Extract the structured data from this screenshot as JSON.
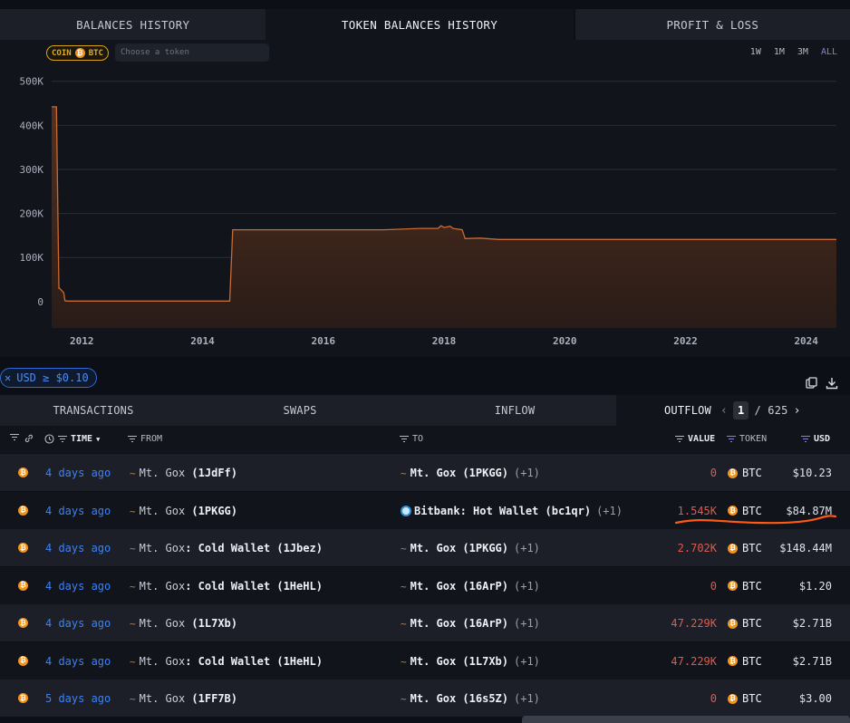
{
  "top_tabs": [
    {
      "label": "BALANCES HISTORY",
      "active": false
    },
    {
      "label": "TOKEN BALANCES HISTORY",
      "active": true
    },
    {
      "label": "PROFIT & LOSS",
      "active": false
    }
  ],
  "coin_filter": {
    "coin_label": "COIN",
    "token": "BTC",
    "token_icon": "bitcoin-icon"
  },
  "token_search": {
    "placeholder": "Choose a token",
    "value": ""
  },
  "ranges": [
    {
      "label": "1W",
      "active": false
    },
    {
      "label": "1M",
      "active": false
    },
    {
      "label": "3M",
      "active": false
    },
    {
      "label": "ALL",
      "active": true
    }
  ],
  "chart_data": {
    "type": "area",
    "title": "",
    "xlabel": "",
    "ylabel": "",
    "ylim": [
      -60000,
      520000
    ],
    "xlim": [
      2011.5,
      2024.5
    ],
    "x_ticks": [
      "2012",
      "2014",
      "2016",
      "2018",
      "2020",
      "2022",
      "2024"
    ],
    "y_ticks": [
      "0",
      "100K",
      "200K",
      "300K",
      "400K",
      "500K"
    ],
    "grid": true,
    "color": "#c96a33",
    "series": [
      {
        "x": [
          2011.5,
          2011.58,
          2011.62,
          2011.63,
          2011.7,
          2011.72,
          2011.75,
          2014.45,
          2014.5,
          2017.0,
          2017.6,
          2017.9,
          2017.95,
          2018.0,
          2018.1,
          2018.15,
          2018.3,
          2018.35,
          2018.6,
          2018.9,
          2020.0,
          2022.0,
          2024.0,
          2024.5
        ],
        "y": [
          442000,
          442000,
          30000,
          30000,
          20000,
          2000,
          1000,
          1000,
          163000,
          163000,
          166000,
          166000,
          172000,
          168000,
          171000,
          166000,
          163000,
          143000,
          144000,
          141000,
          141000,
          141000,
          141000,
          141000
        ]
      }
    ]
  },
  "usd_filter": {
    "label": "USD ≥ $0.10"
  },
  "table_tabs": [
    {
      "label": "TRANSACTIONS",
      "active": false
    },
    {
      "label": "SWAPS",
      "active": false
    },
    {
      "label": "INFLOW",
      "active": false
    },
    {
      "label": "OUTFLOW",
      "active": true
    }
  ],
  "pagination": {
    "current": "1",
    "total": "/ 625"
  },
  "columns": {
    "time": "TIME",
    "from": "FROM",
    "to": "TO",
    "value": "VALUE",
    "token": "TOKEN",
    "usd": "USD"
  },
  "rows": [
    {
      "time": "4 days ago",
      "from_entity": "Mt. Gox",
      "from_label": " (1JdFf)",
      "to_icon": "mtgox-icon",
      "to_entity": "Mt. Gox (1PKGG)",
      "to_extra": "(+1)",
      "value": "0",
      "token": "BTC",
      "usd": "$10.23"
    },
    {
      "time": "4 days ago",
      "from_entity": "Mt. Gox",
      "from_label": " (1PKGG)",
      "to_icon": "bitbank-icon",
      "to_entity": "Bitbank: Hot Wallet (bc1qr)",
      "to_extra": "(+1)",
      "value": "1.545K",
      "token": "BTC",
      "usd": "$84.87M"
    },
    {
      "time": "4 days ago",
      "from_entity": "Mt. Gox",
      "from_label": ": Cold Wallet (1Jbez)",
      "to_icon": "mtgox-icon",
      "to_entity": "Mt. Gox (1PKGG)",
      "to_extra": "(+1)",
      "value": "2.702K",
      "token": "BTC",
      "usd": "$148.44M"
    },
    {
      "time": "4 days ago",
      "from_entity": "Mt. Gox",
      "from_label": ": Cold Wallet (1HeHL)",
      "to_icon": "mtgox-icon",
      "to_entity": "Mt. Gox (16ArP)",
      "to_extra": "(+1)",
      "value": "0",
      "token": "BTC",
      "usd": "$1.20"
    },
    {
      "time": "4 days ago",
      "from_entity": "Mt. Gox",
      "from_label": " (1L7Xb)",
      "to_icon": "mtgox-icon",
      "to_entity": "Mt. Gox (16ArP)",
      "to_extra": "(+1)",
      "value": "47.229K",
      "token": "BTC",
      "usd": "$2.71B"
    },
    {
      "time": "4 days ago",
      "from_entity": "Mt. Gox",
      "from_label": ": Cold Wallet (1HeHL)",
      "to_icon": "mtgox-icon",
      "to_entity": "Mt. Gox (1L7Xb)",
      "to_extra": "(+1)",
      "value": "47.229K",
      "token": "BTC",
      "usd": "$2.71B"
    },
    {
      "time": "5 days ago",
      "from_entity": "Mt. Gox",
      "from_label": " (1FF7B)",
      "to_icon": "mtgox-icon",
      "to_entity": "Mt. Gox (16s5Z)",
      "to_extra": "(+1)",
      "value": "0",
      "token": "BTC",
      "usd": "$3.00"
    }
  ]
}
